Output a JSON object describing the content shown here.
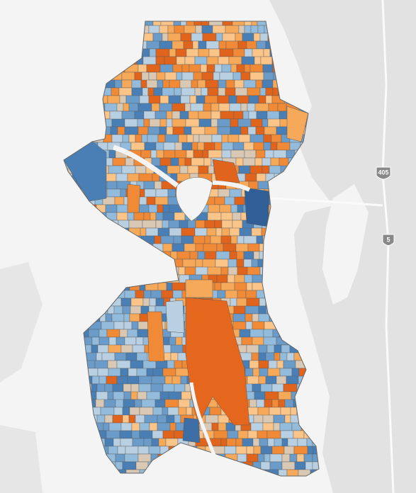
{
  "map": {
    "shields": [
      {
        "label": "405"
      },
      {
        "label": "5"
      }
    ]
  }
}
